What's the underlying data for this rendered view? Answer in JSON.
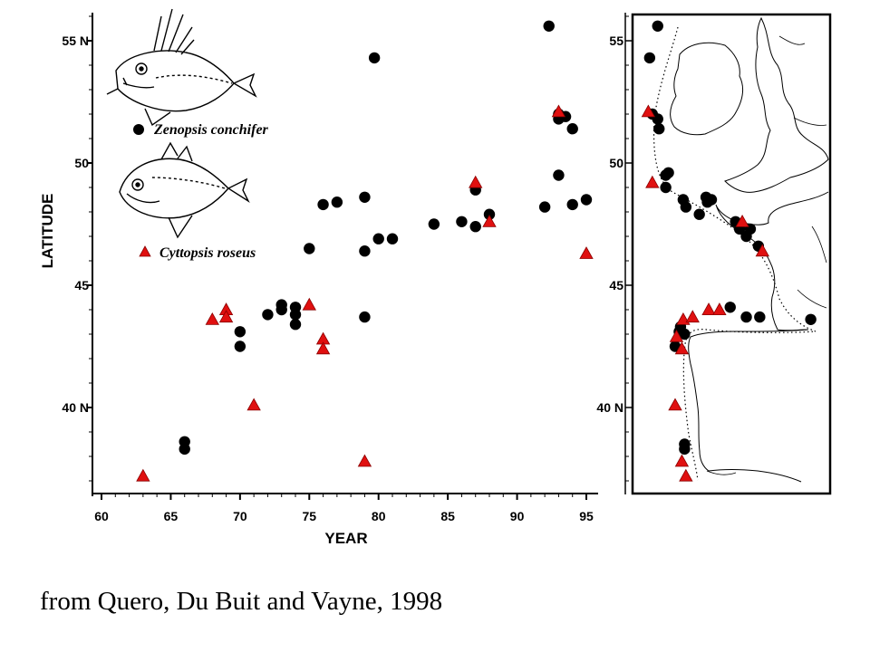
{
  "chart_data": [
    {
      "type": "scatter",
      "title": "",
      "xlabel": "YEAR",
      "ylabel": "LATITUDE",
      "xlim": [
        60,
        95
      ],
      "ylim": [
        36.5,
        57
      ],
      "x_ticks": [
        "60",
        "65",
        "70",
        "75",
        "80",
        "85",
        "90",
        "95"
      ],
      "x_tick_values": [
        60,
        65,
        70,
        75,
        80,
        85,
        90,
        95
      ],
      "y_ticks": [
        "40 N",
        "45",
        "50",
        "55 N"
      ],
      "y_tick_values": [
        40,
        45,
        50,
        55
      ],
      "grid": false,
      "legend_position": "top-left",
      "series": [
        {
          "name": "Zenopsis conchifer",
          "marker": "circle",
          "color": "#000000",
          "points": [
            [
              66,
              38.6
            ],
            [
              66,
              38.3
            ],
            [
              70,
              43.1
            ],
            [
              70,
              42.5
            ],
            [
              72,
              43.8
            ],
            [
              73,
              44.2
            ],
            [
              73,
              44.0
            ],
            [
              74,
              44.1
            ],
            [
              74,
              43.8
            ],
            [
              74,
              43.4
            ],
            [
              75,
              46.5
            ],
            [
              76,
              48.3
            ],
            [
              77,
              48.4
            ],
            [
              79,
              48.6
            ],
            [
              79,
              46.4
            ],
            [
              79,
              43.7
            ],
            [
              79.7,
              54.3
            ],
            [
              80,
              46.9
            ],
            [
              81,
              46.9
            ],
            [
              84,
              47.5
            ],
            [
              86,
              47.6
            ],
            [
              87,
              47.4
            ],
            [
              87,
              48.9
            ],
            [
              88,
              47.9
            ],
            [
              92,
              48.2
            ],
            [
              92.3,
              55.6
            ],
            [
              93,
              52.0
            ],
            [
              93,
              49.5
            ],
            [
              93,
              51.8
            ],
            [
              93.5,
              51.9
            ],
            [
              94,
              51.4
            ],
            [
              94,
              48.3
            ],
            [
              95,
              48.5
            ]
          ]
        },
        {
          "name": "Cyttopsis roseus",
          "marker": "triangle",
          "color": "#e01010",
          "points": [
            [
              63,
              37.2
            ],
            [
              68,
              43.6
            ],
            [
              69,
              44.0
            ],
            [
              69,
              43.7
            ],
            [
              71,
              40.1
            ],
            [
              75,
              44.2
            ],
            [
              76,
              42.8
            ],
            [
              76,
              42.4
            ],
            [
              79,
              37.8
            ],
            [
              87,
              49.2
            ],
            [
              88,
              47.6
            ],
            [
              93,
              52.1
            ],
            [
              95,
              46.3
            ]
          ]
        }
      ]
    },
    {
      "type": "map",
      "y_ticks": [
        "40 N",
        "45",
        "50",
        "55"
      ],
      "y_tick_values": [
        40,
        45,
        50,
        55
      ],
      "ylim": [
        36.5,
        57
      ],
      "series": [
        {
          "name": "Zenopsis conchifer",
          "marker": "circle",
          "color": "#000000",
          "points": [
            [
              -9.6,
              55.6
            ],
            [
              -10.2,
              54.3
            ],
            [
              -10.0,
              52.0
            ],
            [
              -9.6,
              51.8
            ],
            [
              -9.5,
              51.4
            ],
            [
              -9.0,
              49.5
            ],
            [
              -8.8,
              49.6
            ],
            [
              -9.0,
              49.0
            ],
            [
              -7.7,
              48.5
            ],
            [
              -7.5,
              48.2
            ],
            [
              -6.5,
              47.9
            ],
            [
              -6.0,
              48.6
            ],
            [
              -5.6,
              48.5
            ],
            [
              -5.9,
              48.4
            ],
            [
              -3.8,
              47.6
            ],
            [
              -3.5,
              47.3
            ],
            [
              -3.0,
              47.0
            ],
            [
              -2.7,
              47.3
            ],
            [
              -2.1,
              46.6
            ],
            [
              -7.9,
              43.3
            ],
            [
              -8.0,
              43.1
            ],
            [
              -8.3,
              42.5
            ],
            [
              -7.6,
              43.0
            ],
            [
              -4.2,
              44.1
            ],
            [
              -3.0,
              43.7
            ],
            [
              -2.0,
              43.7
            ],
            [
              1.8,
              43.6
            ],
            [
              -7.6,
              38.5
            ],
            [
              -7.6,
              38.3
            ]
          ]
        },
        {
          "name": "Cyttopsis roseus",
          "marker": "triangle",
          "color": "#e01010",
          "points": [
            [
              -10.3,
              52.1
            ],
            [
              -10.0,
              49.2
            ],
            [
              -3.3,
              47.6
            ],
            [
              -1.8,
              46.4
            ],
            [
              -8.2,
              42.9
            ],
            [
              -7.8,
              42.4
            ],
            [
              -7.7,
              43.6
            ],
            [
              -7.0,
              43.7
            ],
            [
              -5.8,
              44.0
            ],
            [
              -5.0,
              44.0
            ],
            [
              -8.3,
              40.1
            ],
            [
              -7.8,
              37.8
            ],
            [
              -7.5,
              37.2
            ]
          ]
        }
      ]
    }
  ],
  "legend": {
    "zenopsis": "Zenopsis conchifer",
    "cyttopsis": "Cyttopsis roseus"
  },
  "fish_icons": [
    "zenopsis-fish-drawing",
    "cyttopsis-fish-drawing"
  ],
  "caption": "from Quero, Du Buit and Vayne,  1998"
}
